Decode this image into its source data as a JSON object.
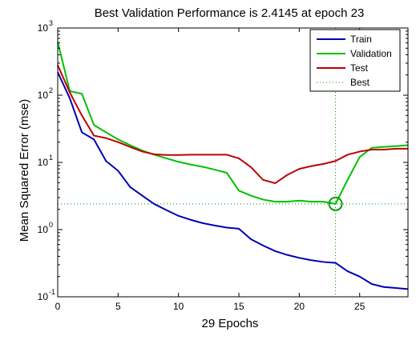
{
  "chart_data": {
    "type": "line",
    "title": "Best Validation Performance is 2.4145 at epoch 23",
    "xlabel": "29 Epochs",
    "ylabel": "Mean Squared Error  (mse)",
    "xlim": [
      0,
      29
    ],
    "ylim": [
      0.1,
      1000
    ],
    "yscale": "log",
    "xticks": [
      0,
      5,
      10,
      15,
      20,
      25
    ],
    "xtick_labels": [
      "0",
      "5",
      "10",
      "15",
      "20",
      "25"
    ],
    "yticks": [
      0.1,
      1,
      10,
      100,
      1000
    ],
    "ytick_labels": [
      {
        "base": "10",
        "exp": "-1"
      },
      {
        "base": "10",
        "exp": "0"
      },
      {
        "base": "10",
        "exp": "1"
      },
      {
        "base": "10",
        "exp": "2"
      },
      {
        "base": "10",
        "exp": "3"
      }
    ],
    "legend_position": "top-right",
    "grid": false,
    "x": [
      0,
      1,
      2,
      3,
      4,
      5,
      6,
      7,
      8,
      9,
      10,
      11,
      12,
      13,
      14,
      15,
      16,
      17,
      18,
      19,
      20,
      21,
      22,
      23,
      24,
      25,
      26,
      27,
      28,
      29
    ],
    "series": [
      {
        "name": "Train",
        "color": "#0000b4",
        "style": "solid",
        "values": [
          220,
          90,
          28,
          22,
          10.5,
          7.5,
          4.3,
          3.2,
          2.4,
          1.95,
          1.6,
          1.4,
          1.25,
          1.15,
          1.07,
          1.03,
          0.72,
          0.58,
          0.48,
          0.42,
          0.38,
          0.35,
          0.33,
          0.32,
          0.24,
          0.2,
          0.155,
          0.14,
          0.135,
          0.13
        ]
      },
      {
        "name": "Validation",
        "color": "#00c000",
        "style": "solid",
        "values": [
          620,
          115,
          105,
          36,
          28,
          22,
          18,
          15,
          13,
          11.5,
          10.2,
          9.3,
          8.6,
          7.8,
          7,
          3.8,
          3.2,
          2.8,
          2.6,
          2.6,
          2.7,
          2.6,
          2.6,
          2.4145,
          5.5,
          12,
          16.5,
          17,
          17.5,
          18
        ]
      },
      {
        "name": "Test",
        "color": "#c00000",
        "style": "solid",
        "values": [
          280,
          110,
          50,
          25,
          23,
          20,
          17,
          14.5,
          13.2,
          12.9,
          12.9,
          13,
          13,
          13,
          13,
          11.5,
          8.5,
          5.5,
          4.9,
          6.5,
          8,
          8.8,
          9.5,
          10.5,
          13,
          14.5,
          15.5,
          15.5,
          16,
          16
        ]
      }
    ],
    "best": {
      "name": "Best",
      "color": "#009000",
      "style": "dotted",
      "epoch": 23,
      "value": 2.4145
    }
  }
}
